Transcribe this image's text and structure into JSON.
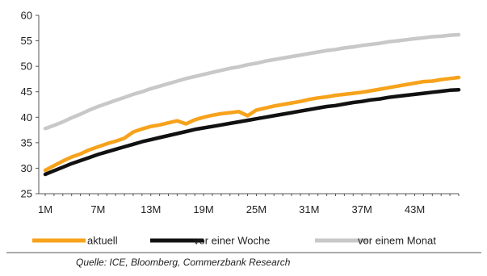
{
  "chart_data": {
    "type": "line",
    "x": [
      "1M",
      "2M",
      "3M",
      "4M",
      "5M",
      "6M",
      "7M",
      "8M",
      "9M",
      "10M",
      "11M",
      "12M",
      "13M",
      "14M",
      "15M",
      "16M",
      "17M",
      "18M",
      "19M",
      "20M",
      "21M",
      "22M",
      "23M",
      "24M",
      "25M",
      "26M",
      "27M",
      "28M",
      "29M",
      "30M",
      "31M",
      "32M",
      "33M",
      "34M",
      "35M",
      "36M",
      "37M",
      "38M",
      "39M",
      "40M",
      "41M",
      "42M",
      "43M",
      "44M",
      "45M",
      "46M",
      "47M",
      "48M"
    ],
    "x_tick_labels": [
      "1M",
      "7M",
      "13M",
      "19M",
      "25M",
      "31M",
      "37M",
      "43M"
    ],
    "ylim": [
      25,
      60
    ],
    "y_ticks": [
      25,
      30,
      35,
      40,
      45,
      50,
      55,
      60
    ],
    "grid": false,
    "legend_position": "bottom",
    "series": [
      {
        "name": "aktuell",
        "color": "#f7a21b",
        "values": [
          29.6,
          30.5,
          31.4,
          32.2,
          32.8,
          33.6,
          34.2,
          34.8,
          35.3,
          35.9,
          37.1,
          37.7,
          38.2,
          38.5,
          38.9,
          39.3,
          38.7,
          39.5,
          40.0,
          40.4,
          40.7,
          40.9,
          41.1,
          40.3,
          41.4,
          41.8,
          42.2,
          42.5,
          42.8,
          43.1,
          43.5,
          43.8,
          44.0,
          44.3,
          44.5,
          44.7,
          44.9,
          45.2,
          45.5,
          45.8,
          46.1,
          46.4,
          46.7,
          47.0,
          47.1,
          47.4,
          47.6,
          47.8
        ]
      },
      {
        "name": "vor einer Woche",
        "color": "#111111",
        "values": [
          28.8,
          29.5,
          30.2,
          30.9,
          31.5,
          32.1,
          32.7,
          33.2,
          33.7,
          34.2,
          34.7,
          35.2,
          35.6,
          36.0,
          36.4,
          36.8,
          37.2,
          37.6,
          37.9,
          38.2,
          38.5,
          38.8,
          39.1,
          39.4,
          39.7,
          40.0,
          40.3,
          40.6,
          40.9,
          41.2,
          41.5,
          41.8,
          42.1,
          42.3,
          42.6,
          42.9,
          43.1,
          43.4,
          43.6,
          43.9,
          44.1,
          44.3,
          44.5,
          44.7,
          44.9,
          45.1,
          45.3,
          45.4
        ]
      },
      {
        "name": "vor einem Monat",
        "color": "#c8c8c8",
        "values": [
          37.8,
          38.4,
          39.1,
          39.9,
          40.6,
          41.4,
          42.1,
          42.7,
          43.3,
          43.9,
          44.5,
          45.0,
          45.6,
          46.1,
          46.6,
          47.1,
          47.6,
          48.0,
          48.4,
          48.8,
          49.2,
          49.6,
          49.9,
          50.3,
          50.6,
          51.0,
          51.3,
          51.6,
          51.9,
          52.2,
          52.5,
          52.8,
          53.1,
          53.3,
          53.6,
          53.8,
          54.1,
          54.3,
          54.5,
          54.8,
          55.0,
          55.2,
          55.4,
          55.6,
          55.8,
          55.9,
          56.1,
          56.2
        ]
      }
    ]
  },
  "legend": {
    "items": [
      "aktuell",
      "vor einer Woche",
      "vor einem Monat"
    ]
  },
  "source_note": "Quelle: ICE, Bloomberg, Commerzbank Research"
}
